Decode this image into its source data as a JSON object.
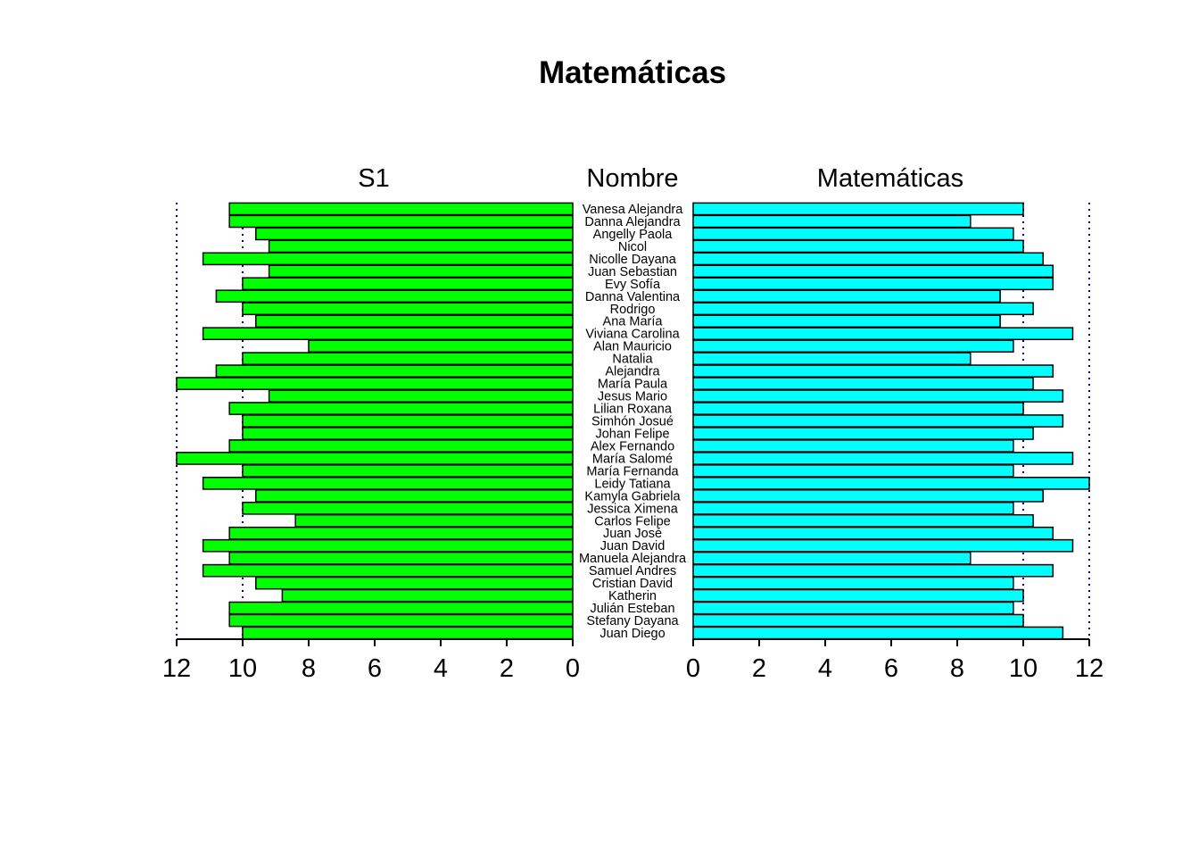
{
  "title": "Matemáticas",
  "chart_data": {
    "type": "bar",
    "title": "Matemáticas",
    "layout": "back-to-back horizontal bars (pyramid)",
    "categories_label": "Nombre",
    "categories": [
      "Vanesa Alejandra",
      "Danna Alejandra",
      "Angelly Paola",
      "Nicol",
      "Nicolle Dayana",
      "Juan Sebastian",
      "Evy Sofía",
      "Danna Valentina",
      "Rodrigo",
      "Ana María",
      "Viviana Carolina",
      "Alan Mauricio",
      "Natalia",
      "Alejandra",
      "María Paula",
      "Jesus Mario",
      "Lilian Roxana",
      "Simhón Josué",
      "Johan Felipe",
      "Alex Fernando",
      "María Salomé",
      "María Fernanda",
      "Leidy Tatiana",
      "Kamyla Gabriela",
      "Jessica Ximena",
      "Carlos Felipe",
      "Juan José",
      "Juan David",
      "Manuela Alejandra",
      "Samuel Andres",
      "Cristian David",
      "Katherin",
      "Julián Esteban",
      "Stefany Dayana",
      "Juan Diego"
    ],
    "series": [
      {
        "name": "S1",
        "side": "left",
        "color": "#00ff00",
        "values": [
          10.4,
          10.4,
          9.6,
          9.2,
          11.2,
          9.2,
          10.0,
          10.8,
          10.0,
          9.6,
          11.2,
          8.0,
          10.0,
          10.8,
          12.0,
          9.2,
          10.4,
          10.0,
          10.0,
          10.4,
          12.0,
          10.0,
          11.2,
          9.6,
          10.0,
          8.4,
          10.4,
          11.2,
          10.4,
          11.2,
          9.6,
          8.8,
          10.4,
          10.4,
          10.0
        ]
      },
      {
        "name": "Matemáticas",
        "side": "right",
        "color": "#00ffff",
        "values": [
          10.0,
          8.4,
          9.7,
          10.0,
          10.6,
          10.9,
          10.9,
          9.3,
          10.3,
          9.3,
          11.5,
          9.7,
          8.4,
          10.9,
          10.3,
          11.2,
          10.0,
          11.2,
          10.3,
          9.7,
          11.5,
          9.7,
          12.0,
          10.6,
          9.7,
          10.3,
          10.9,
          11.5,
          8.4,
          10.9,
          9.7,
          10.0,
          9.7,
          10.0,
          11.2
        ]
      }
    ],
    "xlim": [
      0,
      12
    ],
    "ticks": [
      "0",
      "2",
      "4",
      "6",
      "8",
      "10",
      "12"
    ],
    "reference_lines": [
      10,
      12
    ],
    "reference_line_color": "#00008b",
    "grid": false
  }
}
